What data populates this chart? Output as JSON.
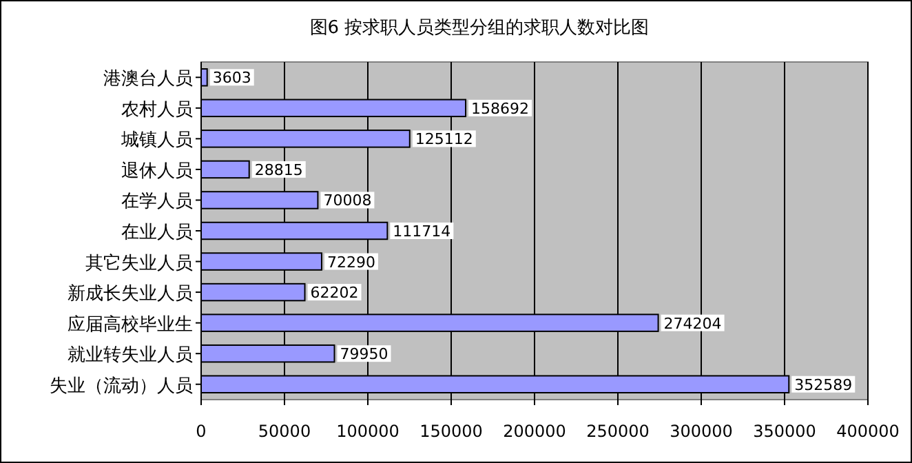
{
  "chart_data": {
    "type": "bar",
    "title": "图6 按求职人员类型分组的求职人数对比图",
    "orientation": "horizontal",
    "categories": [
      "港澳台人员",
      "农村人员",
      "城镇人员",
      "退休人员",
      "在学人员",
      "在业人员",
      "其它失业人员",
      "新成长失业人员",
      "应届高校毕业生",
      "就业转失业人员",
      "失业（流动）人员"
    ],
    "values": [
      3603,
      158692,
      125112,
      28815,
      70008,
      111714,
      72290,
      62202,
      274204,
      79950,
      352589
    ],
    "color": "#9999ff",
    "xlim": [
      0,
      400000
    ],
    "xticks": [
      0,
      50000,
      100000,
      150000,
      200000,
      250000,
      300000,
      350000,
      400000
    ],
    "grid": "x",
    "data_labels": true
  }
}
